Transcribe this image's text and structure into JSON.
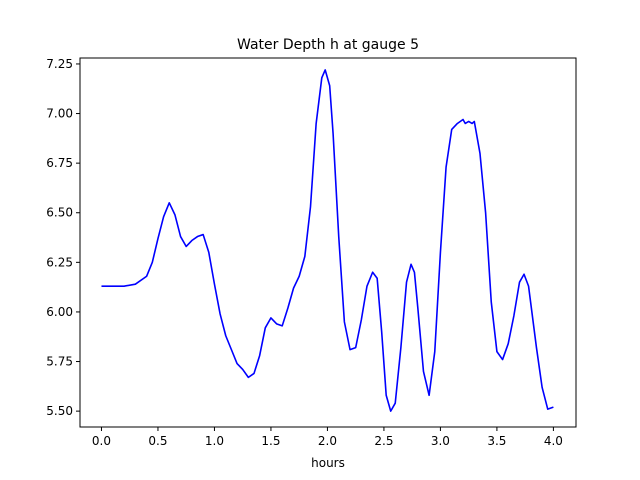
{
  "chart_data": {
    "type": "line",
    "title": "Water Depth h at gauge 5",
    "xlabel": "hours",
    "ylabel": "",
    "xlim": [
      -0.19,
      4.2
    ],
    "ylim": [
      5.42,
      7.28
    ],
    "xticks": [
      0.0,
      0.5,
      1.0,
      1.5,
      2.0,
      2.5,
      3.0,
      3.5,
      4.0
    ],
    "xtick_labels": [
      "0.0",
      "0.5",
      "1.0",
      "1.5",
      "2.0",
      "2.5",
      "3.0",
      "3.5",
      "4.0"
    ],
    "yticks": [
      5.5,
      5.75,
      6.0,
      6.25,
      6.5,
      6.75,
      7.0,
      7.25
    ],
    "ytick_labels": [
      "5.50",
      "5.75",
      "6.00",
      "6.25",
      "6.50",
      "6.75",
      "7.00",
      "7.25"
    ],
    "grid": false,
    "series": [
      {
        "color": "#0000ff",
        "x": [
          0.0,
          0.2,
          0.3,
          0.4,
          0.45,
          0.5,
          0.55,
          0.6,
          0.65,
          0.7,
          0.75,
          0.8,
          0.85,
          0.9,
          0.95,
          1.0,
          1.05,
          1.1,
          1.15,
          1.2,
          1.25,
          1.3,
          1.35,
          1.4,
          1.45,
          1.5,
          1.55,
          1.6,
          1.65,
          1.7,
          1.75,
          1.8,
          1.85,
          1.9,
          1.95,
          1.98,
          2.02,
          2.05,
          2.1,
          2.15,
          2.2,
          2.25,
          2.3,
          2.35,
          2.4,
          2.44,
          2.48,
          2.52,
          2.56,
          2.6,
          2.65,
          2.7,
          2.74,
          2.77,
          2.8,
          2.85,
          2.9,
          2.95,
          3.0,
          3.05,
          3.1,
          3.15,
          3.2,
          3.22,
          3.25,
          3.28,
          3.3,
          3.35,
          3.4,
          3.45,
          3.5,
          3.55,
          3.6,
          3.65,
          3.7,
          3.74,
          3.78,
          3.85,
          3.9,
          3.95,
          4.0
        ],
        "y": [
          6.13,
          6.13,
          6.14,
          6.18,
          6.25,
          6.37,
          6.48,
          6.55,
          6.49,
          6.38,
          6.33,
          6.36,
          6.38,
          6.39,
          6.3,
          6.14,
          5.99,
          5.88,
          5.81,
          5.74,
          5.71,
          5.67,
          5.69,
          5.78,
          5.92,
          5.97,
          5.94,
          5.93,
          6.02,
          6.12,
          6.18,
          6.28,
          6.53,
          6.95,
          7.18,
          7.22,
          7.14,
          6.9,
          6.38,
          5.95,
          5.81,
          5.82,
          5.96,
          6.13,
          6.2,
          6.17,
          5.9,
          5.58,
          5.5,
          5.54,
          5.82,
          6.15,
          6.24,
          6.2,
          6.02,
          5.7,
          5.58,
          5.8,
          6.3,
          6.73,
          6.92,
          6.95,
          6.97,
          6.95,
          6.96,
          6.95,
          6.96,
          6.8,
          6.5,
          6.05,
          5.8,
          5.76,
          5.84,
          5.98,
          6.15,
          6.19,
          6.13,
          5.82,
          5.62,
          5.51,
          5.52
        ]
      }
    ]
  }
}
